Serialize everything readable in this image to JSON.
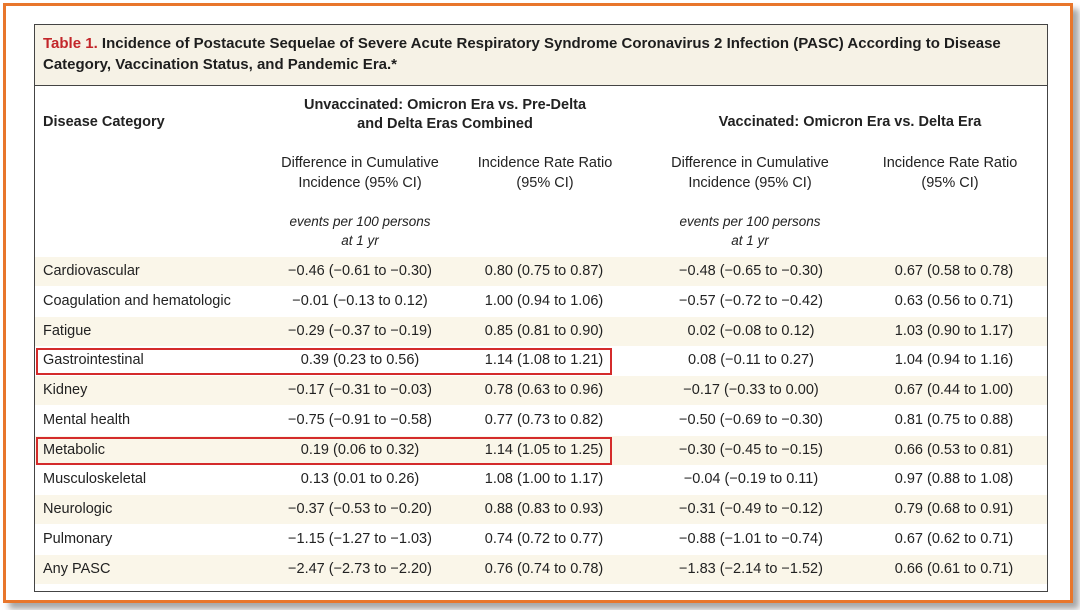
{
  "table": {
    "label": "Table 1.",
    "title": "Incidence of Postacute Sequelae of Severe Acute Respiratory Syndrome Coronavirus 2 Infection (PASC) According to Disease Category, Vaccination Status, and Pandemic Era.*",
    "headers": {
      "disease_category": "Disease Category",
      "group1": "Unvaccinated: Omicron Era vs. Pre-Delta and Delta Eras Combined",
      "group2": "Vaccinated: Omicron Era vs. Delta Era",
      "diff_col": "Difference in Cumulative Incidence (95% CI)",
      "irr_col": "Incidence Rate Ratio (95% CI)",
      "units_line1": "events per 100 persons",
      "units_line2": "at 1 yr"
    },
    "rows": [
      {
        "name": "Cardiovascular",
        "unvax_diff": "−0.46 (−0.61 to −0.30)",
        "unvax_irr": "0.80 (0.75 to 0.87)",
        "vax_diff": "−0.48 (−0.65 to −0.30)",
        "vax_irr": "0.67 (0.58 to 0.78)"
      },
      {
        "name": "Coagulation and hematologic",
        "unvax_diff": "−0.01 (−0.13 to 0.12)",
        "unvax_irr": "1.00 (0.94 to 1.06)",
        "vax_diff": "−0.57 (−0.72 to −0.42)",
        "vax_irr": "0.63 (0.56 to 0.71)"
      },
      {
        "name": "Fatigue",
        "unvax_diff": "−0.29 (−0.37 to −0.19)",
        "unvax_irr": "0.85 (0.81 to 0.90)",
        "vax_diff": "0.02 (−0.08 to 0.12)",
        "vax_irr": "1.03 (0.90 to 1.17)"
      },
      {
        "name": "Gastrointestinal",
        "unvax_diff": "0.39 (0.23 to 0.56)",
        "unvax_irr": "1.14 (1.08 to 1.21)",
        "vax_diff": "0.08 (−0.11 to 0.27)",
        "vax_irr": "1.04 (0.94 to 1.16)"
      },
      {
        "name": "Kidney",
        "unvax_diff": "−0.17 (−0.31 to −0.03)",
        "unvax_irr": "0.78 (0.63 to 0.96)",
        "vax_diff": "−0.17 (−0.33 to 0.00)",
        "vax_irr": "0.67 (0.44 to 1.00)"
      },
      {
        "name": "Mental health",
        "unvax_diff": "−0.75 (−0.91 to −0.58)",
        "unvax_irr": "0.77 (0.73 to 0.82)",
        "vax_diff": "−0.50 (−0.69 to −0.30)",
        "vax_irr": "0.81 (0.75 to 0.88)"
      },
      {
        "name": "Metabolic",
        "unvax_diff": "0.19 (0.06 to 0.32)",
        "unvax_irr": "1.14 (1.05 to 1.25)",
        "vax_diff": "−0.30 (−0.45 to −0.15)",
        "vax_irr": "0.66 (0.53 to 0.81)"
      },
      {
        "name": "Musculoskeletal",
        "unvax_diff": "0.13 (0.01 to 0.26)",
        "unvax_irr": "1.08 (1.00 to 1.17)",
        "vax_diff": "−0.04 (−0.19 to 0.11)",
        "vax_irr": "0.97 (0.88 to 1.08)"
      },
      {
        "name": "Neurologic",
        "unvax_diff": "−0.37 (−0.53 to −0.20)",
        "unvax_irr": "0.88 (0.83 to 0.93)",
        "vax_diff": "−0.31 (−0.49 to −0.12)",
        "vax_irr": "0.79 (0.68 to 0.91)"
      },
      {
        "name": "Pulmonary",
        "unvax_diff": "−1.15 (−1.27 to −1.03)",
        "unvax_irr": "0.74 (0.72 to 0.77)",
        "vax_diff": "−0.88 (−1.01 to −0.74)",
        "vax_irr": "0.67 (0.62 to 0.71)"
      },
      {
        "name": "Any PASC",
        "unvax_diff": "−2.47 (−2.73 to −2.20)",
        "unvax_irr": "0.76 (0.74 to 0.78)",
        "vax_diff": "−1.83 (−2.14 to −1.52)",
        "vax_irr": "0.66 (0.61 to 0.71)"
      }
    ],
    "highlighted_rows": [
      "Gastrointestinal",
      "Metabolic"
    ]
  },
  "colors": {
    "frame_border": "#e8762b",
    "title_label": "#c3262a",
    "title_bg": "#f6f2e6",
    "row_shade": "#faf6e9",
    "highlight_box": "#d42b2b"
  }
}
